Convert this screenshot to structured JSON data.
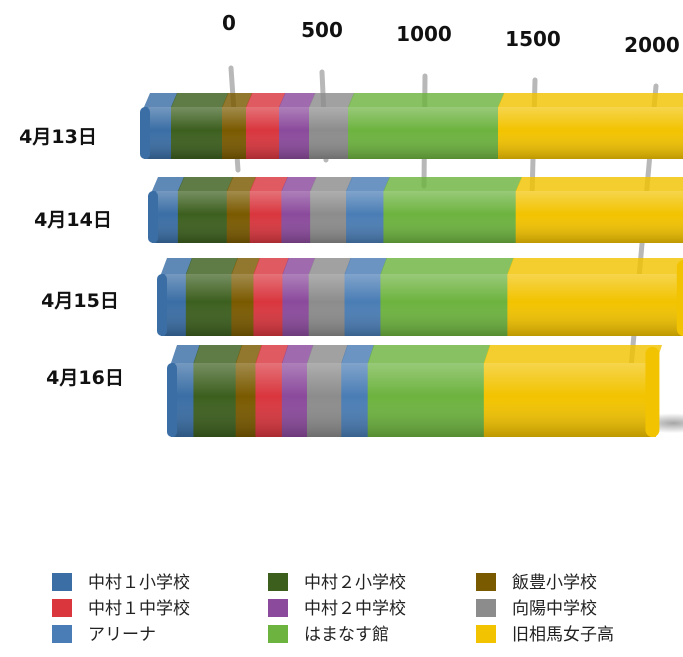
{
  "chart_data": {
    "type": "bar",
    "orientation": "horizontal",
    "stacked": true,
    "three_d": true,
    "categories": [
      "4月13日",
      "4月14日",
      "4月15日",
      "4月16日"
    ],
    "x_ticks": [
      "0",
      "500",
      "1000",
      "1500",
      "2000"
    ],
    "xlim": [
      0,
      2000
    ],
    "grid": true,
    "legend_position": "bottom",
    "series": [
      {
        "name": "中村１小学校",
        "color": "#3A6EA5",
        "values": [
          90,
          90,
          90,
          85
        ]
      },
      {
        "name": "中村２小学校",
        "color": "#3C5F1E",
        "values": [
          170,
          170,
          165,
          160
        ]
      },
      {
        "name": "飯豊小学校",
        "color": "#7A5A00",
        "values": [
          80,
          80,
          80,
          75
        ]
      },
      {
        "name": "中村１中学校",
        "color": "#D9363E",
        "values": [
          110,
          110,
          105,
          100
        ]
      },
      {
        "name": "中村２中学校",
        "color": "#8B4A9C",
        "values": [
          100,
          100,
          95,
          95
        ]
      },
      {
        "name": "向陽中学校",
        "color": "#8C8C8C",
        "values": [
          130,
          125,
          130,
          130
        ]
      },
      {
        "name": "アリーナ",
        "color": "#4A7DB5",
        "values": [
          0,
          130,
          130,
          100
        ]
      },
      {
        "name": "はまなす館",
        "color": "#6DB33F",
        "values": [
          500,
          460,
          460,
          440
        ]
      },
      {
        "name": "旧相馬女子高",
        "color": "#F2C300",
        "values": [
          680,
          670,
          650,
          650
        ]
      }
    ]
  }
}
